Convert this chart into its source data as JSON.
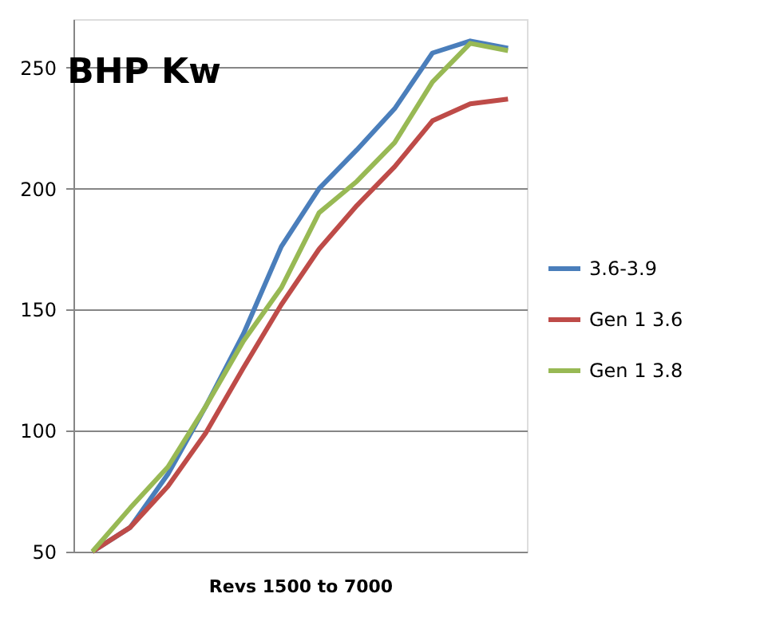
{
  "chart_data": {
    "type": "line",
    "title": "BHP Kw",
    "xlabel": "Revs 1500 to 7000",
    "categories": [
      null,
      null,
      null,
      null,
      null,
      null,
      null,
      null,
      null,
      null,
      null,
      null
    ],
    "series": [
      {
        "name": "3.6-3.9",
        "color": "#4a7ebb",
        "values": [
          50,
          60,
          82,
          110,
          140,
          176,
          200,
          216,
          233,
          256,
          261,
          258
        ]
      },
      {
        "name": "Gen 1 3.6",
        "color": "#be4b48",
        "values": [
          50,
          60,
          77,
          99,
          126,
          152,
          175,
          193,
          209,
          228,
          235,
          237
        ]
      },
      {
        "name": "Gen 1 3.8",
        "color": "#98b954",
        "values": [
          50,
          68,
          85,
          110,
          137,
          159,
          190,
          203,
          219,
          244,
          260,
          257
        ]
      }
    ],
    "ylim": [
      50,
      270
    ],
    "yticks": [
      50,
      100,
      150,
      200,
      250
    ],
    "grid": "y",
    "legend": "right",
    "tick_labels": "y",
    "marker": "none",
    "line_style": "solid"
  }
}
